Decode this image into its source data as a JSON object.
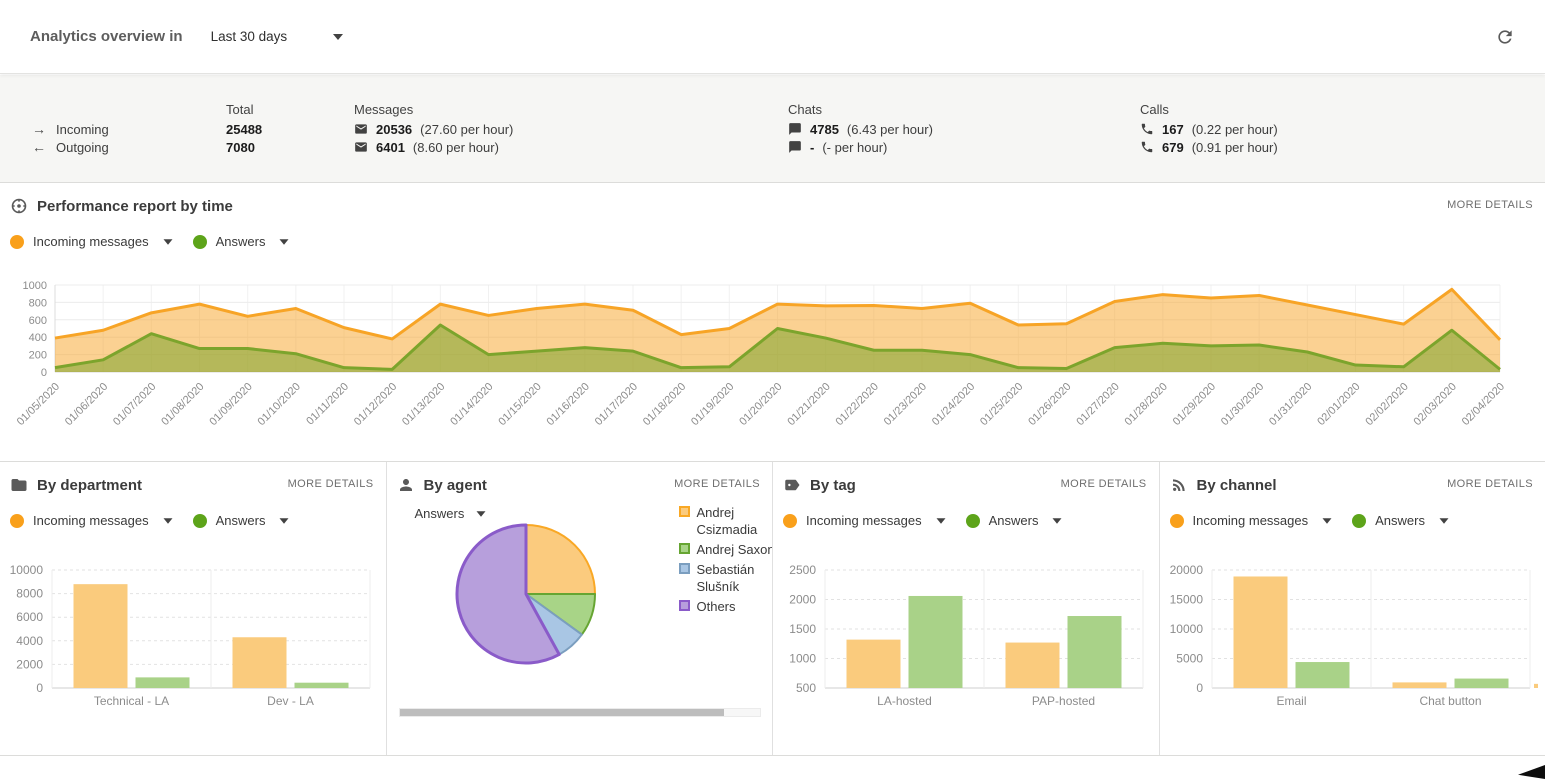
{
  "header": {
    "title": "Analytics overview in",
    "range_label": "Last 30 days"
  },
  "summary": {
    "incoming_label": "Incoming",
    "outgoing_label": "Outgoing",
    "total": {
      "header": "Total",
      "incoming": "25488",
      "outgoing": "7080"
    },
    "messages": {
      "header": "Messages",
      "incoming": "20536",
      "incoming_rate": "(27.60 per hour)",
      "outgoing": "6401",
      "outgoing_rate": "(8.60 per hour)"
    },
    "chats": {
      "header": "Chats",
      "incoming": "4785",
      "incoming_rate": "(6.43 per hour)",
      "outgoing": "-",
      "outgoing_rate": "(- per hour)"
    },
    "calls": {
      "header": "Calls",
      "incoming": "167",
      "incoming_rate": "(0.22 per hour)",
      "outgoing": "679",
      "outgoing_rate": "(0.91 per hour)"
    }
  },
  "performance": {
    "title": "Performance report by time",
    "more_details": "MORE DETAILS",
    "legend": [
      {
        "label": "Incoming messages",
        "color": "#F9A01B"
      },
      {
        "label": "Answers",
        "color": "#5DA41A"
      }
    ],
    "chart_data": {
      "type": "area",
      "x": [
        "01/05/2020",
        "01/06/2020",
        "01/07/2020",
        "01/08/2020",
        "01/09/2020",
        "01/10/2020",
        "01/11/2020",
        "01/12/2020",
        "01/13/2020",
        "01/14/2020",
        "01/15/2020",
        "01/16/2020",
        "01/17/2020",
        "01/18/2020",
        "01/19/2020",
        "01/20/2020",
        "01/21/2020",
        "01/22/2020",
        "01/23/2020",
        "01/24/2020",
        "01/25/2020",
        "01/26/2020",
        "01/27/2020",
        "01/28/2020",
        "01/29/2020",
        "01/30/2020",
        "01/31/2020",
        "02/01/2020",
        "02/02/2020",
        "02/03/2020",
        "02/04/2020"
      ],
      "series": [
        {
          "name": "Incoming messages",
          "color": "#F7A426",
          "fill": "rgba(247,164,38,0.5)",
          "values": [
            390,
            480,
            680,
            780,
            640,
            730,
            510,
            380,
            780,
            650,
            730,
            780,
            710,
            430,
            500,
            780,
            760,
            765,
            730,
            790,
            540,
            555,
            810,
            890,
            850,
            880,
            770,
            660,
            550,
            950,
            370
          ]
        },
        {
          "name": "Answers",
          "color": "#7CA42C",
          "fill": "rgba(124,164,44,0.55)",
          "values": [
            50,
            140,
            440,
            270,
            270,
            210,
            50,
            30,
            540,
            200,
            240,
            280,
            240,
            50,
            60,
            500,
            390,
            250,
            250,
            200,
            50,
            40,
            280,
            330,
            300,
            310,
            230,
            80,
            60,
            480,
            30
          ]
        }
      ],
      "ylim": [
        0,
        1000
      ],
      "yticks": [
        0,
        200,
        400,
        600,
        800,
        1000
      ],
      "grid": true,
      "legend_position": "top-left"
    }
  },
  "panels": {
    "department": {
      "title": "By department",
      "more_details": "MORE DETAILS",
      "legend": [
        {
          "label": "Incoming messages",
          "color": "#F9A01B"
        },
        {
          "label": "Answers",
          "color": "#5DA41A"
        }
      ],
      "chart_data": {
        "type": "bar",
        "categories": [
          "Technical - LA",
          "Dev - LA"
        ],
        "series": [
          {
            "name": "Incoming messages",
            "fill": "#FACB7D",
            "values": [
              8800,
              4300
            ]
          },
          {
            "name": "Answers",
            "fill": "#A9D288",
            "values": [
              900,
              450
            ]
          }
        ],
        "ylim": [
          0,
          10000
        ],
        "yticks": [
          0,
          2000,
          4000,
          6000,
          8000,
          10000
        ]
      }
    },
    "agent": {
      "title": "By agent",
      "more_details": "MORE DETAILS",
      "metric_label": "Answers",
      "chart_data": {
        "type": "pie",
        "slices": [
          {
            "label": "Andrej Csizmadia",
            "value": 25,
            "fill": "#FBCB7E",
            "stroke": "#F9A825"
          },
          {
            "label": "Andrej Saxon",
            "value": 10,
            "fill": "#A8D487",
            "stroke": "#66A532"
          },
          {
            "label": "Sebastián Slušník",
            "value": 7,
            "fill": "#A9C6E4",
            "stroke": "#7B9EBF"
          },
          {
            "label": "Others",
            "value": 58,
            "fill": "#B79FDC",
            "stroke": "#8A5BC9"
          }
        ]
      }
    },
    "tag": {
      "title": "By tag",
      "more_details": "MORE DETAILS",
      "legend": [
        {
          "label": "Incoming messages",
          "color": "#F9A01B"
        },
        {
          "label": "Answers",
          "color": "#5DA41A"
        }
      ],
      "chart_data": {
        "type": "bar",
        "categories": [
          "LA-hosted",
          "PAP-hosted"
        ],
        "series": [
          {
            "name": "Incoming messages",
            "fill": "#FACB7D",
            "values": [
              1320,
              1270
            ]
          },
          {
            "name": "Answers",
            "fill": "#A9D288",
            "values": [
              2060,
              1720
            ]
          }
        ],
        "ylim": [
          500,
          2500
        ],
        "yticks": [
          500,
          1000,
          1500,
          2000,
          2500
        ]
      }
    },
    "channel": {
      "title": "By channel",
      "more_details": "MORE DETAILS",
      "legend": [
        {
          "label": "Incoming messages",
          "color": "#F9A01B"
        },
        {
          "label": "Answers",
          "color": "#5DA41A"
        }
      ],
      "chart_data": {
        "type": "bar",
        "categories": [
          "Email",
          "Chat button"
        ],
        "series": [
          {
            "name": "Incoming messages",
            "fill": "#FACB7D",
            "values": [
              18900,
              950
            ]
          },
          {
            "name": "Answers",
            "fill": "#A9D288",
            "values": [
              4400,
              1600
            ]
          }
        ],
        "ylim": [
          0,
          20000
        ],
        "yticks": [
          0,
          5000,
          10000,
          15000,
          20000
        ],
        "clipped_next": {
          "fill": "#FACB7D",
          "value": 700
        }
      }
    }
  }
}
